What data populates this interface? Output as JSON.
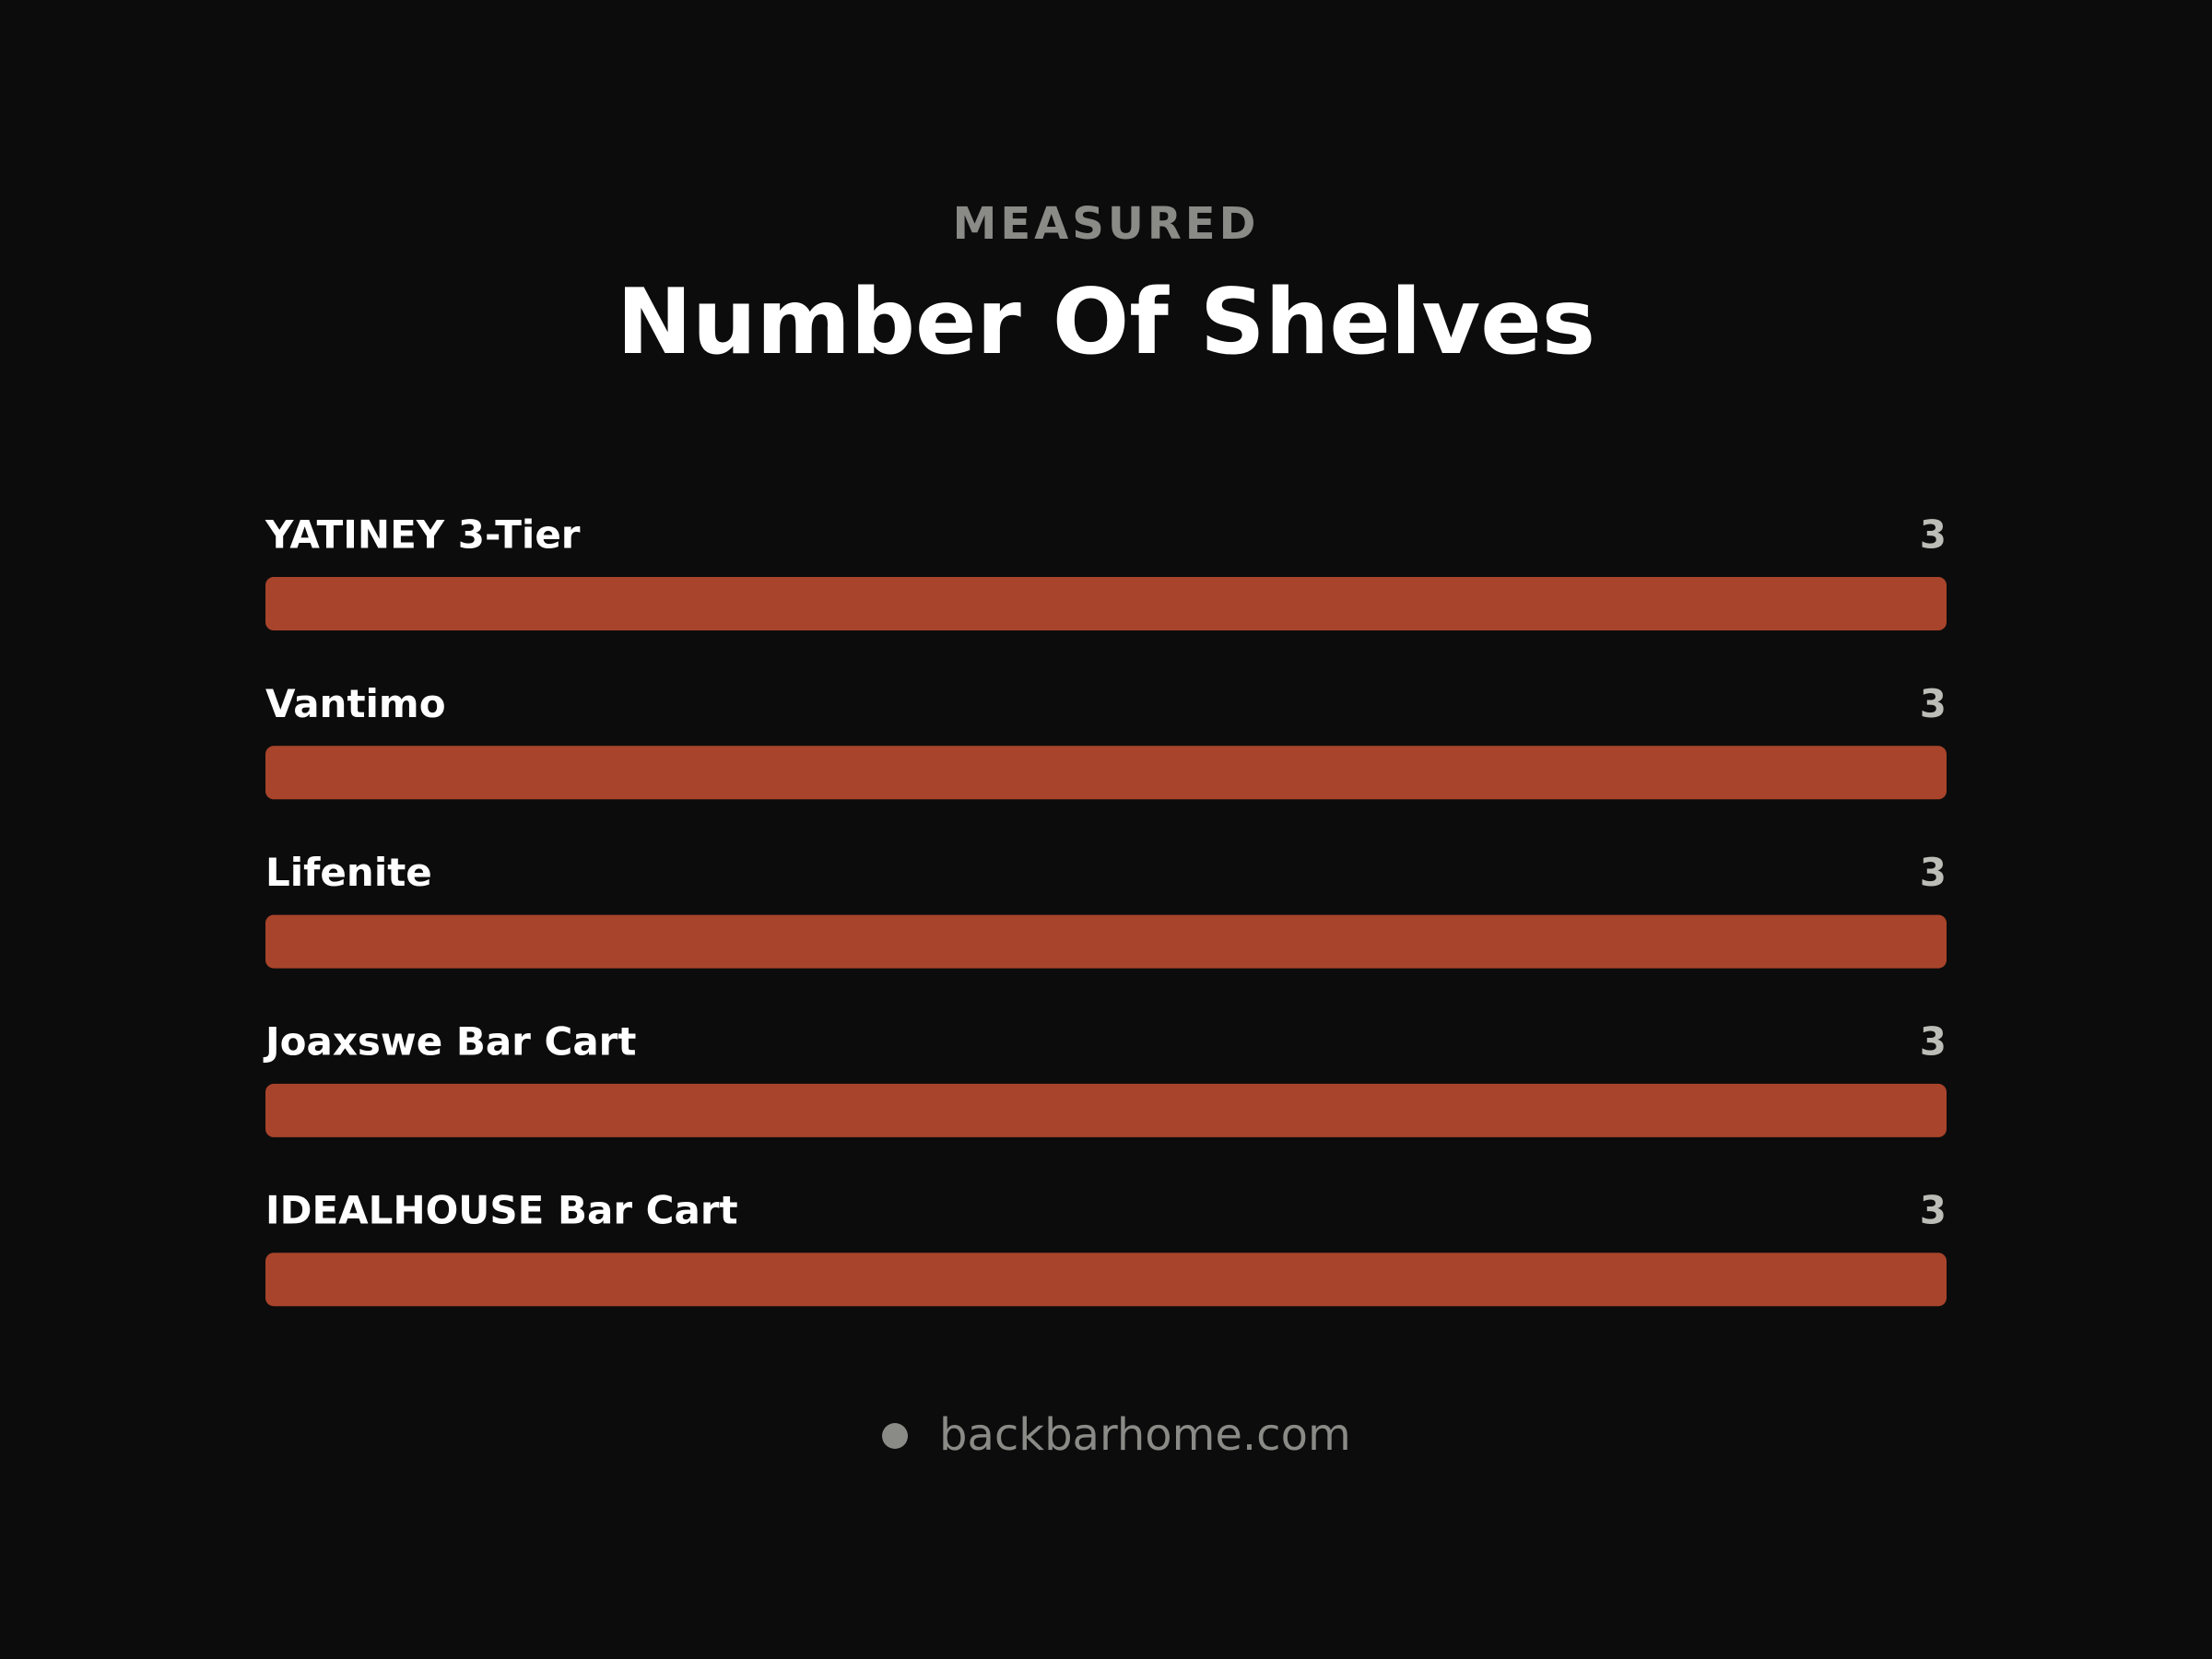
{
  "chart_data": {
    "type": "bar",
    "orientation": "horizontal",
    "subtitle": "MEASURED",
    "title": "Number Of Shelves",
    "categories": [
      "YATINEY 3-Tier",
      "Vantimo",
      "Lifenite",
      "Joaxswe Bar Cart",
      "IDEALHOUSE Bar Cart"
    ],
    "values": [
      3,
      3,
      3,
      3,
      3
    ],
    "color": "#a8442b",
    "xlim": [
      0,
      3
    ],
    "source": "backbarhome.com"
  }
}
